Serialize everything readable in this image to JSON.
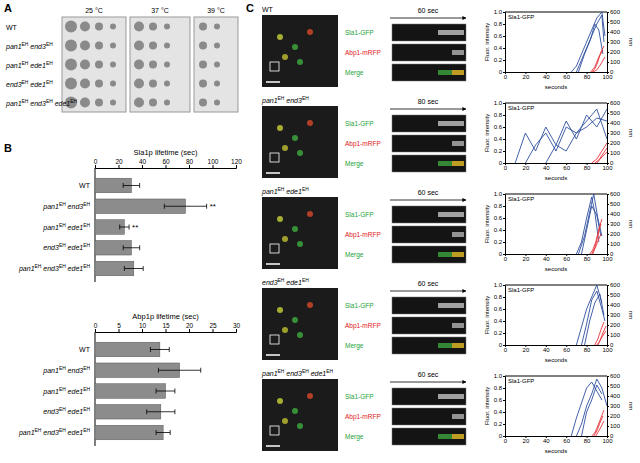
{
  "figure": {
    "panel_labels": [
      "A",
      "B",
      "C"
    ],
    "panel_a": {
      "temperatures": [
        "25 °C",
        "37 °C",
        "39 °C"
      ],
      "strains": [
        "WT",
        "pan1EH end3EH",
        "pan1EH ede1EH",
        "end3EH ede1EH",
        "pan1EH end3EH ede1EH"
      ]
    },
    "panel_c": {
      "channels": [
        "Sla1-GFP",
        "Abp1-mRFP",
        "Merge"
      ],
      "rows": [
        {
          "strain": "WT",
          "time": "60 sec"
        },
        {
          "strain": "pan1EH end3EH",
          "time": "80 sec"
        },
        {
          "strain": "pan1EH ede1EH",
          "time": "60 sec"
        },
        {
          "strain": "end3EH ede1EH",
          "time": "60 sec"
        },
        {
          "strain": "pan1EH end3EH ede1EH",
          "time": "60 sec"
        }
      ]
    }
  },
  "chart_data": [
    {
      "type": "bar",
      "orientation": "horizontal",
      "title": "Sla1p lifetime (sec)",
      "categories": [
        "WT",
        "pan1EH end3EH",
        "pan1EH ede1EH",
        "end3EH ede1EH",
        "pan1EH end3EH ede1EH"
      ],
      "values": [
        31,
        77,
        25,
        31,
        33
      ],
      "errors": [
        7,
        18,
        4,
        7,
        8
      ],
      "significance": [
        null,
        "**",
        "**",
        null,
        null
      ],
      "color": "#8c8c8c",
      "xlim": [
        0,
        120
      ],
      "xticks": [
        0,
        20,
        40,
        60,
        80,
        100,
        120
      ]
    },
    {
      "type": "bar",
      "orientation": "horizontal",
      "title": "Abp1p lifetime (sec)",
      "categories": [
        "WT",
        "pan1EH end3EH",
        "pan1EH ede1EH",
        "end3EH ede1EH",
        "pan1EH end3EH ede1EH"
      ],
      "values": [
        13.8,
        18,
        15,
        14,
        14.5
      ],
      "errors": [
        2,
        4.5,
        2,
        3,
        1.5
      ],
      "color": "#8c8c8c",
      "xlim": [
        0,
        30
      ],
      "xticks": [
        0,
        5,
        10,
        15,
        20,
        25,
        30
      ]
    },
    {
      "type": "line",
      "title": "Sla1-GFP",
      "xlabel": "seconds",
      "ylabel": "Fluor. intensity",
      "y2label": "nm",
      "xlim": [
        0,
        100
      ],
      "xticks": [
        0,
        20,
        40,
        60,
        80,
        100
      ],
      "ylim": [
        0,
        1
      ],
      "yticks": [
        0,
        0.2,
        0.4,
        0.6,
        0.8,
        {
          "value": 1,
          "label": "1.0"
        }
      ],
      "y2lim": [
        0,
        600
      ],
      "y2ticks": [
        0,
        100,
        200,
        300,
        400,
        500,
        600
      ],
      "series": [
        {
          "color": "#2e4f9e",
          "x": [
            65,
            70,
            75,
            80,
            85,
            90,
            95,
            98
          ],
          "values": [
            0,
            0.1,
            0.3,
            0.5,
            0.7,
            0.9,
            1.0,
            0.6
          ]
        },
        {
          "color": "#2e4f9e",
          "x": [
            70,
            75,
            80,
            85,
            90,
            95,
            97
          ],
          "values": [
            0,
            0.2,
            0.4,
            0.6,
            0.8,
            0.95,
            0.5
          ]
        },
        {
          "color": "#2e4f9e",
          "x": [
            72,
            78,
            84,
            88,
            92,
            96
          ],
          "values": [
            0,
            0.3,
            0.55,
            0.8,
            0.7,
            0.3
          ]
        },
        {
          "color": "#e8333b",
          "axis": "y2",
          "x": [
            85,
            88,
            91,
            94,
            97
          ],
          "values": [
            0,
            30,
            100,
            200,
            260
          ]
        },
        {
          "color": "#e8333b",
          "axis": "y2",
          "x": [
            84,
            88,
            92,
            96
          ],
          "values": [
            0,
            50,
            150,
            220
          ]
        },
        {
          "color": "#e8333b",
          "axis": "y2",
          "x": [
            86,
            90,
            94,
            98
          ],
          "values": [
            0,
            20,
            80,
            150
          ]
        }
      ]
    },
    {
      "type": "line",
      "title": "Sla1-GFP",
      "xlabel": "seconds",
      "ylabel": "Fluor. intensity",
      "y2label": "nm",
      "xlim": [
        0,
        100
      ],
      "xticks": [
        0,
        20,
        40,
        60,
        80,
        100
      ],
      "ylim": [
        0,
        1
      ],
      "yticks": [
        0,
        0.2,
        0.4,
        0.6,
        0.8,
        {
          "value": 1,
          "label": "1.0"
        }
      ],
      "y2lim": [
        0,
        600
      ],
      "y2ticks": [
        0,
        100,
        200,
        300,
        400,
        500,
        600
      ],
      "series": [
        {
          "color": "#2e4f9e",
          "x": [
            10,
            20,
            30,
            40,
            50,
            60,
            70,
            80,
            90,
            100
          ],
          "values": [
            0,
            0.5,
            0.2,
            0.6,
            0.3,
            0.7,
            0.4,
            0.8,
            0.6,
            0.9
          ]
        },
        {
          "color": "#2e4f9e",
          "x": [
            20,
            30,
            40,
            50,
            60,
            70,
            80,
            90,
            100
          ],
          "values": [
            0,
            0.3,
            0.5,
            0.2,
            0.6,
            0.5,
            0.7,
            0.9,
            0.4
          ]
        },
        {
          "color": "#2e4f9e",
          "x": [
            40,
            50,
            60,
            70,
            80,
            90,
            100
          ],
          "values": [
            0,
            0.3,
            0.2,
            0.5,
            0.6,
            0.75,
            0.7
          ]
        },
        {
          "color": "#e8333b",
          "axis": "y2",
          "x": [
            85,
            90,
            95,
            100
          ],
          "values": [
            0,
            40,
            120,
            200
          ]
        },
        {
          "color": "#e8333b",
          "axis": "y2",
          "x": [
            88,
            92,
            96,
            100
          ],
          "values": [
            0,
            30,
            90,
            150
          ]
        },
        {
          "color": "#e8333b",
          "axis": "y2",
          "x": [
            90,
            95,
            100
          ],
          "values": [
            0,
            60,
            110
          ]
        }
      ]
    },
    {
      "type": "line",
      "title": "Sla1-GFP",
      "xlabel": "seconds",
      "ylabel": "Fluor. intensity",
      "y2label": "nm",
      "xlim": [
        0,
        100
      ],
      "xticks": [
        0,
        20,
        40,
        60,
        80,
        100
      ],
      "ylim": [
        0,
        1
      ],
      "yticks": [
        0,
        0.2,
        0.4,
        0.6,
        0.8,
        {
          "value": 1,
          "label": "1.0"
        }
      ],
      "y2lim": [
        0,
        600
      ],
      "y2ticks": [
        0,
        100,
        200,
        300,
        400,
        500,
        600
      ],
      "series": [
        {
          "color": "#2e4f9e",
          "x": [
            70,
            75,
            80,
            85,
            88,
            92
          ],
          "values": [
            0,
            0.2,
            0.6,
            0.95,
            0.7,
            0.2
          ]
        },
        {
          "color": "#2e4f9e",
          "x": [
            72,
            78,
            83,
            87,
            91,
            95
          ],
          "values": [
            0,
            0.3,
            0.7,
            1.0,
            0.6,
            0.3
          ]
        },
        {
          "color": "#2e4f9e",
          "x": [
            75,
            80,
            85,
            90,
            94
          ],
          "values": [
            0,
            0.4,
            0.8,
            0.65,
            0.3
          ]
        },
        {
          "color": "#e8333b",
          "axis": "y2",
          "x": [
            83,
            86,
            89,
            92,
            95
          ],
          "values": [
            0,
            40,
            120,
            250,
            350
          ]
        },
        {
          "color": "#e8333b",
          "axis": "y2",
          "x": [
            85,
            88,
            91,
            94
          ],
          "values": [
            0,
            60,
            180,
            300
          ]
        },
        {
          "color": "#e8333b",
          "axis": "y2",
          "x": [
            86,
            90,
            94
          ],
          "values": [
            0,
            100,
            200
          ]
        }
      ]
    },
    {
      "type": "line",
      "title": "Sla1-GFP",
      "xlabel": "seconds",
      "ylabel": "Fluor. intensity",
      "y2label": "nm",
      "xlim": [
        0,
        100
      ],
      "xticks": [
        0,
        20,
        40,
        60,
        80,
        100
      ],
      "ylim": [
        0,
        1
      ],
      "yticks": [
        0,
        0.2,
        0.4,
        0.6,
        0.8,
        {
          "value": 1,
          "label": "1.0"
        }
      ],
      "y2lim": [
        0,
        600
      ],
      "y2ticks": [
        0,
        100,
        200,
        300,
        400,
        500,
        600
      ],
      "series": [
        {
          "color": "#2e4f9e",
          "x": [
            70,
            75,
            80,
            85,
            90,
            95
          ],
          "values": [
            0,
            0.3,
            0.6,
            0.8,
            1.0,
            0.7
          ]
        },
        {
          "color": "#2e4f9e",
          "x": [
            75,
            80,
            85,
            90,
            95,
            98
          ],
          "values": [
            0,
            0.35,
            0.75,
            0.9,
            0.6,
            0.4
          ]
        },
        {
          "color": "#2e4f9e",
          "x": [
            78,
            83,
            88,
            93,
            97
          ],
          "values": [
            0,
            0.4,
            0.7,
            0.85,
            0.5
          ]
        },
        {
          "color": "#e8333b",
          "axis": "y2",
          "x": [
            88,
            91,
            94,
            97
          ],
          "values": [
            0,
            60,
            150,
            230
          ]
        },
        {
          "color": "#e8333b",
          "axis": "y2",
          "x": [
            90,
            93,
            96,
            99
          ],
          "values": [
            0,
            40,
            120,
            190
          ]
        },
        {
          "color": "#e8333b",
          "axis": "y2",
          "x": [
            91,
            95,
            99
          ],
          "values": [
            0,
            80,
            140
          ]
        }
      ]
    },
    {
      "type": "line",
      "title": "Sla1-GFP",
      "xlabel": "seconds",
      "ylabel": "Fluor. intensity",
      "y2label": "nm",
      "xlim": [
        0,
        100
      ],
      "xticks": [
        0,
        20,
        40,
        60,
        80,
        100
      ],
      "ylim": [
        0,
        1
      ],
      "yticks": [
        0,
        0.2,
        0.4,
        0.6,
        0.8,
        {
          "value": 1,
          "label": "1.0"
        }
      ],
      "y2lim": [
        0,
        600
      ],
      "y2ticks": [
        0,
        100,
        200,
        300,
        400,
        500,
        600
      ],
      "series": [
        {
          "color": "#2e4f9e",
          "x": [
            65,
            70,
            75,
            80,
            85,
            90,
            95
          ],
          "values": [
            0,
            0.3,
            0.55,
            0.8,
            0.9,
            0.75,
            0.6
          ]
        },
        {
          "color": "#2e4f9e",
          "x": [
            70,
            75,
            80,
            85,
            90,
            95,
            100
          ],
          "values": [
            0,
            0.2,
            0.5,
            0.7,
            0.95,
            0.8,
            0.5
          ]
        },
        {
          "color": "#2e4f9e",
          "x": [
            75,
            80,
            85,
            90,
            95
          ],
          "values": [
            0,
            0.4,
            0.6,
            0.85,
            0.7
          ]
        },
        {
          "color": "#e8333b",
          "axis": "y2",
          "x": [
            85,
            88,
            91,
            94,
            97
          ],
          "values": [
            0,
            30,
            100,
            180,
            260
          ]
        },
        {
          "color": "#e8333b",
          "axis": "y2",
          "x": [
            87,
            90,
            93,
            96
          ],
          "values": [
            0,
            50,
            130,
            200
          ]
        },
        {
          "color": "#e8333b",
          "axis": "y2",
          "x": [
            89,
            93,
            97
          ],
          "values": [
            0,
            70,
            150
          ]
        }
      ]
    }
  ]
}
